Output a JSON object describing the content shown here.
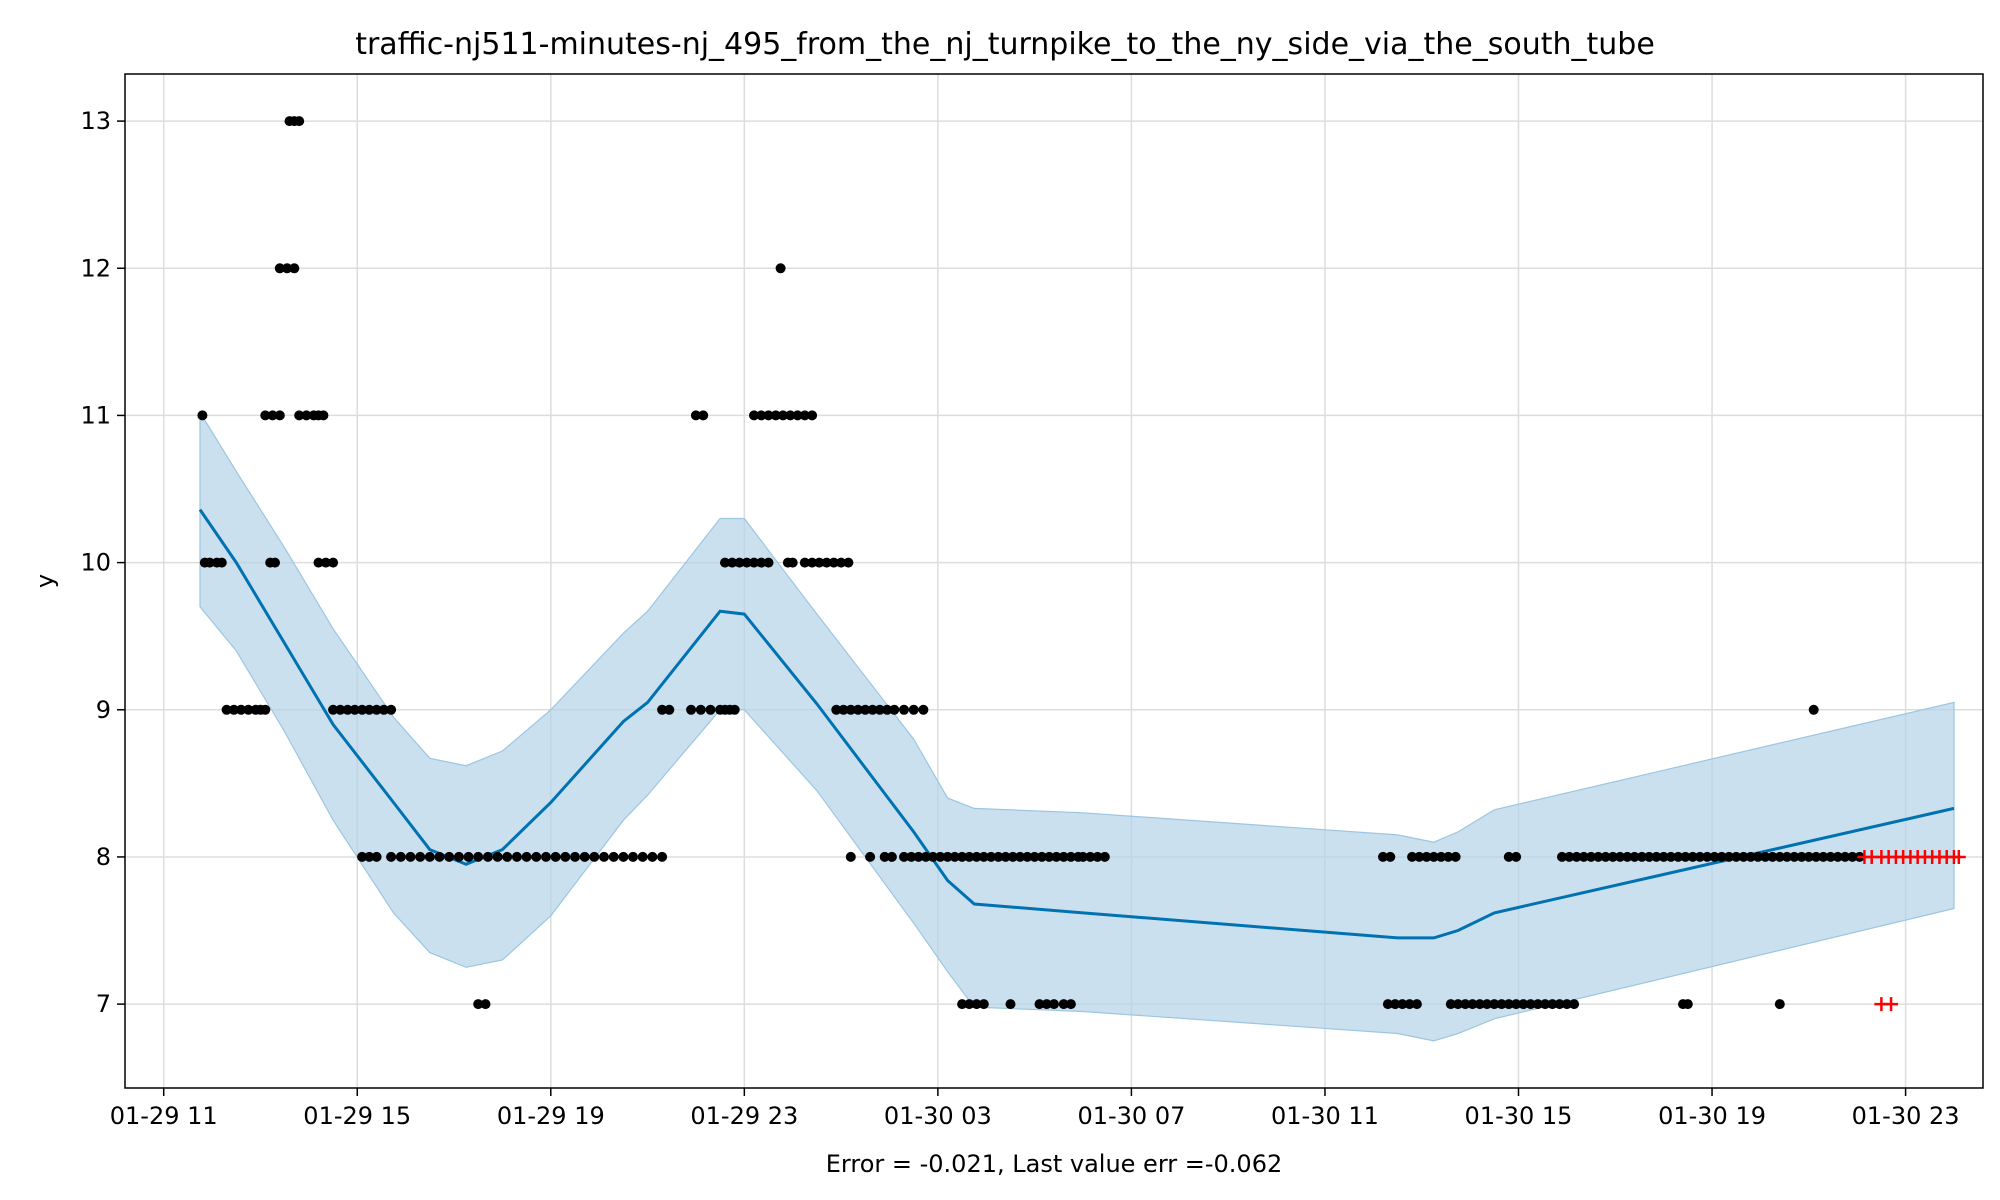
{
  "chart_data": {
    "type": "scatter",
    "title": "traffic-nj511-minutes-nj_495_from_the_nj_turnpike_to_the_ny_side_via_the_south_tube",
    "xlabel": "Error = -0.021, Last value err =-0.062",
    "ylabel": "y",
    "x_ticks": [
      "01-29 11",
      "01-29 15",
      "01-29 19",
      "01-29 23",
      "01-30 03",
      "01-30 07",
      "01-30 11",
      "01-30 15",
      "01-30 19",
      "01-30 23"
    ],
    "y_ticks": [
      7,
      8,
      9,
      10,
      11,
      12,
      13
    ],
    "x_range_hours": [
      10.2,
      48.6
    ],
    "ylim": [
      6.43,
      13.32
    ],
    "grid": true,
    "colors": {
      "observed": "#000000",
      "forecast_line": "#0072B2",
      "interval_fill": "#b3d3e8",
      "holdout": "#ff0000"
    },
    "forecast": {
      "x_hours": [
        11.75,
        12.5,
        13.5,
        14.5,
        15.75,
        16.5,
        17.25,
        18.0,
        19.0,
        20.5,
        21.0,
        22.5,
        23.0,
        24.5,
        26.5,
        27.2,
        27.75,
        30.0,
        36.5,
        37.25,
        37.75,
        38.5,
        48.0
      ],
      "yhat": [
        10.36,
        10.0,
        9.45,
        8.9,
        8.37,
        8.05,
        7.95,
        8.05,
        8.37,
        8.92,
        9.05,
        9.67,
        9.65,
        9.04,
        8.17,
        7.84,
        7.68,
        7.62,
        7.45,
        7.45,
        7.5,
        7.62,
        8.33
      ],
      "lower": [
        9.7,
        9.4,
        8.85,
        8.25,
        7.62,
        7.35,
        7.25,
        7.3,
        7.6,
        8.25,
        8.42,
        9.0,
        9.0,
        8.45,
        7.55,
        7.22,
        6.98,
        6.95,
        6.8,
        6.75,
        6.8,
        6.9,
        7.65
      ],
      "upper": [
        11.02,
        10.62,
        10.1,
        9.55,
        8.95,
        8.67,
        8.62,
        8.72,
        9.0,
        9.52,
        9.67,
        10.3,
        10.3,
        9.65,
        8.8,
        8.4,
        8.33,
        8.3,
        8.15,
        8.1,
        8.17,
        8.32,
        9.05
      ]
    },
    "observed_points": [
      {
        "x": [
          11.8
        ],
        "y": 11
      },
      {
        "x": [
          11.85,
          11.95,
          12.1,
          12.2
        ],
        "y": 10
      },
      {
        "x": [
          12.3,
          12.45,
          12.6,
          12.75,
          12.9,
          13.0,
          13.1
        ],
        "y": 9
      },
      {
        "x": [
          13.1,
          13.25,
          13.4
        ],
        "y": 11
      },
      {
        "x": [
          13.2,
          13.3
        ],
        "y": 10
      },
      {
        "x": [
          13.4,
          13.55,
          13.7
        ],
        "y": 12
      },
      {
        "x": [
          13.6,
          13.7,
          13.8
        ],
        "y": 13
      },
      {
        "x": [
          13.8,
          13.95,
          14.1,
          14.2,
          14.3
        ],
        "y": 11
      },
      {
        "x": [
          14.2,
          14.35,
          14.5
        ],
        "y": 10
      },
      {
        "x": [
          14.5,
          14.65,
          14.8,
          14.95,
          15.1,
          15.25,
          15.4,
          15.55,
          15.7
        ],
        "y": 9
      },
      {
        "x": [
          15.1,
          15.25,
          15.4
        ],
        "y": 8
      },
      {
        "x": [
          15.7,
          15.9,
          16.1,
          16.3,
          16.5,
          16.7,
          16.9,
          17.1,
          17.3,
          17.5,
          17.7,
          17.9,
          18.1,
          18.3,
          18.5,
          18.7,
          18.9,
          19.1,
          19.3,
          19.5,
          19.7,
          19.9,
          20.1,
          20.3,
          20.5,
          20.7,
          20.9,
          21.1,
          21.3
        ],
        "y": 8
      },
      {
        "x": [
          17.5,
          17.65
        ],
        "y": 7
      },
      {
        "x": [
          21.3,
          21.45
        ],
        "y": 9
      },
      {
        "x": [
          21.9,
          22.1,
          22.3,
          22.5,
          22.7
        ],
        "y": 9
      },
      {
        "x": [
          22.0,
          22.15
        ],
        "y": 11
      },
      {
        "x": [
          22.6,
          22.8
        ],
        "y": 9
      },
      {
        "x": [
          22.6,
          22.75,
          22.9,
          23.05,
          23.2,
          23.35,
          23.5
        ],
        "y": 10
      },
      {
        "x": [
          23.2,
          23.35,
          23.5,
          23.65,
          23.8,
          23.95,
          24.1,
          24.25,
          24.4
        ],
        "y": 11
      },
      {
        "x": [
          23.75
        ],
        "y": 12
      },
      {
        "x": [
          23.9,
          24.0
        ],
        "y": 10
      },
      {
        "x": [
          24.25,
          24.4,
          24.55,
          24.7,
          24.85,
          25.0,
          25.15
        ],
        "y": 10
      },
      {
        "x": [
          24.9,
          25.05,
          25.2,
          25.35,
          25.5,
          25.65,
          25.8,
          25.95,
          26.1,
          26.3,
          26.5,
          26.7
        ],
        "y": 9
      },
      {
        "x": [
          25.2
        ],
        "y": 8
      },
      {
        "x": [
          25.6,
          25.9,
          26.05,
          26.3,
          26.45,
          26.6,
          26.75,
          26.9,
          27.05,
          27.2,
          27.35,
          27.5,
          27.65,
          27.8,
          27.95,
          28.1,
          28.25,
          28.4,
          28.55,
          28.7,
          28.85,
          29.0,
          29.15,
          29.3,
          29.45,
          29.6,
          29.75,
          29.9,
          30.0,
          30.15,
          30.3,
          30.45
        ],
        "y": 8
      },
      {
        "x": [
          27.5,
          27.65,
          27.8,
          27.95
        ],
        "y": 7
      },
      {
        "x": [
          28.5
        ],
        "y": 7
      },
      {
        "x": [
          29.1,
          29.25,
          29.4,
          29.6,
          29.75
        ],
        "y": 7
      },
      {
        "x": [
          36.2,
          36.35
        ],
        "y": 8
      },
      {
        "x": [
          36.3,
          36.45,
          36.6,
          36.75,
          36.9
        ],
        "y": 7
      },
      {
        "x": [
          36.8,
          36.95,
          37.1,
          37.25,
          37.4,
          37.55,
          37.7
        ],
        "y": 8
      },
      {
        "x": [
          37.6,
          37.75,
          37.9,
          38.05,
          38.2,
          38.35,
          38.5,
          38.65,
          38.8,
          38.95,
          39.1,
          39.25,
          39.4,
          39.55,
          39.7,
          39.85,
          40.0,
          40.15
        ],
        "y": 7
      },
      {
        "x": [
          38.8,
          38.95
        ],
        "y": 8
      },
      {
        "x": [
          39.9,
          40.05,
          40.2,
          40.35,
          40.5,
          40.65,
          40.8,
          40.95,
          41.1,
          41.25,
          41.4,
          41.55,
          41.7,
          41.85,
          42.0,
          42.15,
          42.3,
          42.45,
          42.6,
          42.75,
          42.9,
          43.05,
          43.2,
          43.35,
          43.5,
          43.65,
          43.8,
          43.95,
          44.1,
          44.25,
          44.4,
          44.55,
          44.7,
          44.85,
          45.0,
          45.15,
          45.3,
          45.45,
          45.6,
          45.75,
          45.9,
          46.05
        ],
        "y": 8
      },
      {
        "x": [
          42.4,
          42.5
        ],
        "y": 7
      },
      {
        "x": [
          44.4
        ],
        "y": 7
      },
      {
        "x": [
          45.1
        ],
        "y": 9
      }
    ],
    "holdout_points": [
      {
        "x": [
          46.15,
          46.3,
          46.5,
          46.65,
          46.8,
          46.95,
          47.1,
          47.25,
          47.4,
          47.55,
          47.7,
          47.85,
          48.0,
          48.1
        ],
        "y": 8
      },
      {
        "x": [
          46.5,
          46.7
        ],
        "y": 7
      }
    ]
  }
}
